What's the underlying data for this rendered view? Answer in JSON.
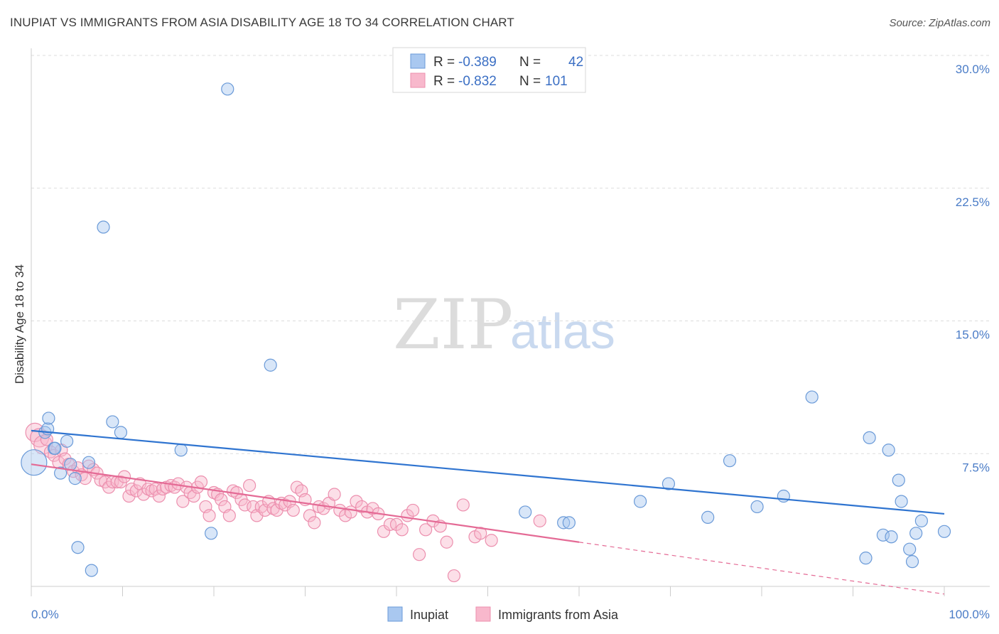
{
  "title": "INUPIAT VS IMMIGRANTS FROM ASIA DISABILITY AGE 18 TO 34 CORRELATION CHART",
  "source": "Source: ZipAtlas.com",
  "watermark": {
    "zip": "ZIP",
    "atlas": "atlas"
  },
  "legend_box": {
    "rows": [
      {
        "r_label": "R =",
        "r_value": "-0.389",
        "n_label": "N =",
        "n_value": "42",
        "color": "#a9c8f0"
      },
      {
        "r_label": "R =",
        "r_value": "-0.832",
        "n_label": "N =",
        "n_value": "101",
        "color": "#f8b8cc"
      }
    ]
  },
  "chart_data": {
    "type": "scatter",
    "title": "INUPIAT VS IMMIGRANTS FROM ASIA DISABILITY AGE 18 TO 34 CORRELATION CHART",
    "xlabel": "",
    "ylabel": "Disability Age 18 to 34",
    "xlim": [
      0,
      100
    ],
    "ylim": [
      0,
      30
    ],
    "y_ticks": [
      "7.5%",
      "15.0%",
      "22.5%",
      "30.0%"
    ],
    "y_tick_values": [
      7.5,
      15.0,
      22.5,
      30.0
    ],
    "x_tick_labels": [
      "0.0%",
      "100.0%"
    ],
    "grid": true,
    "legend_placement": "top-center",
    "series": [
      {
        "name": "Inupiat",
        "color": "#a9c8f0",
        "stroke": "#6a9ad8",
        "trend_color": "#2f74d0",
        "trend": {
          "x0": 0,
          "y0": 8.8,
          "x1": 100,
          "y1": 4.1
        },
        "points": [
          [
            0.3,
            7.0
          ],
          [
            1.5,
            8.7
          ],
          [
            1.8,
            8.9
          ],
          [
            1.9,
            9.5
          ],
          [
            2.5,
            7.8
          ],
          [
            2.6,
            7.8
          ],
          [
            3.2,
            6.4
          ],
          [
            3.9,
            8.2
          ],
          [
            4.3,
            6.9
          ],
          [
            4.8,
            6.1
          ],
          [
            5.1,
            2.2
          ],
          [
            6.3,
            7.0
          ],
          [
            6.6,
            0.9
          ],
          [
            7.9,
            20.3
          ],
          [
            8.9,
            9.3
          ],
          [
            9.8,
            8.7
          ],
          [
            16.4,
            7.7
          ],
          [
            19.7,
            3.0
          ],
          [
            21.5,
            28.1
          ],
          [
            26.2,
            12.5
          ],
          [
            54.1,
            4.2
          ],
          [
            58.3,
            3.6
          ],
          [
            58.9,
            3.6
          ],
          [
            66.7,
            4.8
          ],
          [
            69.8,
            5.8
          ],
          [
            74.1,
            3.9
          ],
          [
            76.5,
            7.1
          ],
          [
            79.5,
            4.5
          ],
          [
            82.4,
            5.1
          ],
          [
            85.5,
            10.7
          ],
          [
            91.4,
            1.6
          ],
          [
            91.8,
            8.4
          ],
          [
            93.3,
            2.9
          ],
          [
            93.9,
            7.7
          ],
          [
            94.2,
            2.8
          ],
          [
            95.0,
            6.0
          ],
          [
            95.3,
            4.8
          ],
          [
            96.2,
            2.1
          ],
          [
            96.5,
            1.4
          ],
          [
            96.9,
            3.0
          ],
          [
            97.5,
            3.7
          ],
          [
            100.0,
            3.1
          ]
        ]
      },
      {
        "name": "Immigrants from Asia",
        "color": "#f8b8cc",
        "stroke": "#ec8fae",
        "trend_color": "#e46a95",
        "trend": {
          "x0": 0,
          "y0": 6.9,
          "x1": 60,
          "y1": 2.5,
          "dash_to_x": 100
        },
        "points": [
          [
            0.4,
            8.7
          ],
          [
            0.9,
            8.4
          ],
          [
            1.3,
            8.0
          ],
          [
            1.7,
            8.3
          ],
          [
            2.1,
            7.6
          ],
          [
            2.5,
            7.4
          ],
          [
            3.0,
            7.0
          ],
          [
            3.3,
            7.7
          ],
          [
            3.7,
            7.2
          ],
          [
            4.1,
            6.9
          ],
          [
            4.6,
            6.5
          ],
          [
            5.1,
            6.7
          ],
          [
            5.5,
            6.3
          ],
          [
            5.9,
            6.1
          ],
          [
            6.3,
            6.8
          ],
          [
            6.8,
            6.6
          ],
          [
            7.2,
            6.4
          ],
          [
            7.6,
            6.0
          ],
          [
            8.1,
            5.9
          ],
          [
            8.5,
            5.6
          ],
          [
            8.9,
            5.9
          ],
          [
            9.4,
            5.9
          ],
          [
            9.8,
            5.9
          ],
          [
            10.2,
            6.2
          ],
          [
            10.7,
            5.1
          ],
          [
            11.0,
            5.5
          ],
          [
            11.5,
            5.4
          ],
          [
            11.9,
            5.8
          ],
          [
            12.3,
            5.2
          ],
          [
            12.8,
            5.5
          ],
          [
            13.2,
            5.4
          ],
          [
            13.6,
            5.5
          ],
          [
            14.0,
            5.1
          ],
          [
            14.4,
            5.5
          ],
          [
            14.8,
            5.6
          ],
          [
            15.3,
            5.7
          ],
          [
            15.7,
            5.6
          ],
          [
            16.1,
            5.8
          ],
          [
            16.6,
            4.8
          ],
          [
            17.0,
            5.6
          ],
          [
            17.4,
            5.3
          ],
          [
            17.8,
            5.1
          ],
          [
            18.2,
            5.6
          ],
          [
            18.6,
            5.9
          ],
          [
            19.1,
            4.5
          ],
          [
            19.5,
            4.0
          ],
          [
            20.0,
            5.3
          ],
          [
            20.4,
            5.2
          ],
          [
            20.8,
            4.9
          ],
          [
            21.2,
            4.5
          ],
          [
            21.7,
            4.0
          ],
          [
            22.1,
            5.4
          ],
          [
            22.5,
            5.3
          ],
          [
            23.0,
            4.9
          ],
          [
            23.4,
            4.6
          ],
          [
            23.9,
            5.7
          ],
          [
            24.3,
            4.5
          ],
          [
            24.7,
            4.0
          ],
          [
            25.2,
            4.5
          ],
          [
            25.6,
            4.3
          ],
          [
            26.0,
            4.8
          ],
          [
            26.5,
            4.4
          ],
          [
            26.9,
            4.3
          ],
          [
            27.4,
            4.7
          ],
          [
            27.8,
            4.6
          ],
          [
            28.3,
            4.8
          ],
          [
            28.7,
            4.3
          ],
          [
            29.1,
            5.6
          ],
          [
            29.6,
            5.4
          ],
          [
            30.0,
            4.9
          ],
          [
            30.5,
            4.0
          ],
          [
            31.0,
            3.6
          ],
          [
            31.5,
            4.5
          ],
          [
            32.0,
            4.4
          ],
          [
            32.6,
            4.7
          ],
          [
            33.2,
            5.2
          ],
          [
            33.8,
            4.3
          ],
          [
            34.4,
            4.0
          ],
          [
            35.0,
            4.2
          ],
          [
            35.6,
            4.8
          ],
          [
            36.2,
            4.5
          ],
          [
            36.8,
            4.2
          ],
          [
            37.4,
            4.4
          ],
          [
            38.0,
            4.1
          ],
          [
            38.6,
            3.1
          ],
          [
            39.3,
            3.5
          ],
          [
            40.0,
            3.5
          ],
          [
            40.6,
            3.2
          ],
          [
            41.2,
            4.0
          ],
          [
            41.8,
            4.3
          ],
          [
            42.5,
            1.8
          ],
          [
            43.2,
            3.2
          ],
          [
            44.0,
            3.7
          ],
          [
            44.8,
            3.4
          ],
          [
            45.5,
            2.5
          ],
          [
            46.3,
            0.6
          ],
          [
            47.3,
            4.6
          ],
          [
            48.6,
            2.8
          ],
          [
            49.2,
            3.0
          ],
          [
            50.4,
            2.6
          ],
          [
            55.7,
            3.7
          ]
        ]
      }
    ]
  },
  "bottom_legend": [
    {
      "label": "Inupiat",
      "color": "#a9c8f0"
    },
    {
      "label": "Immigrants from Asia",
      "color": "#f8b8cc"
    }
  ]
}
